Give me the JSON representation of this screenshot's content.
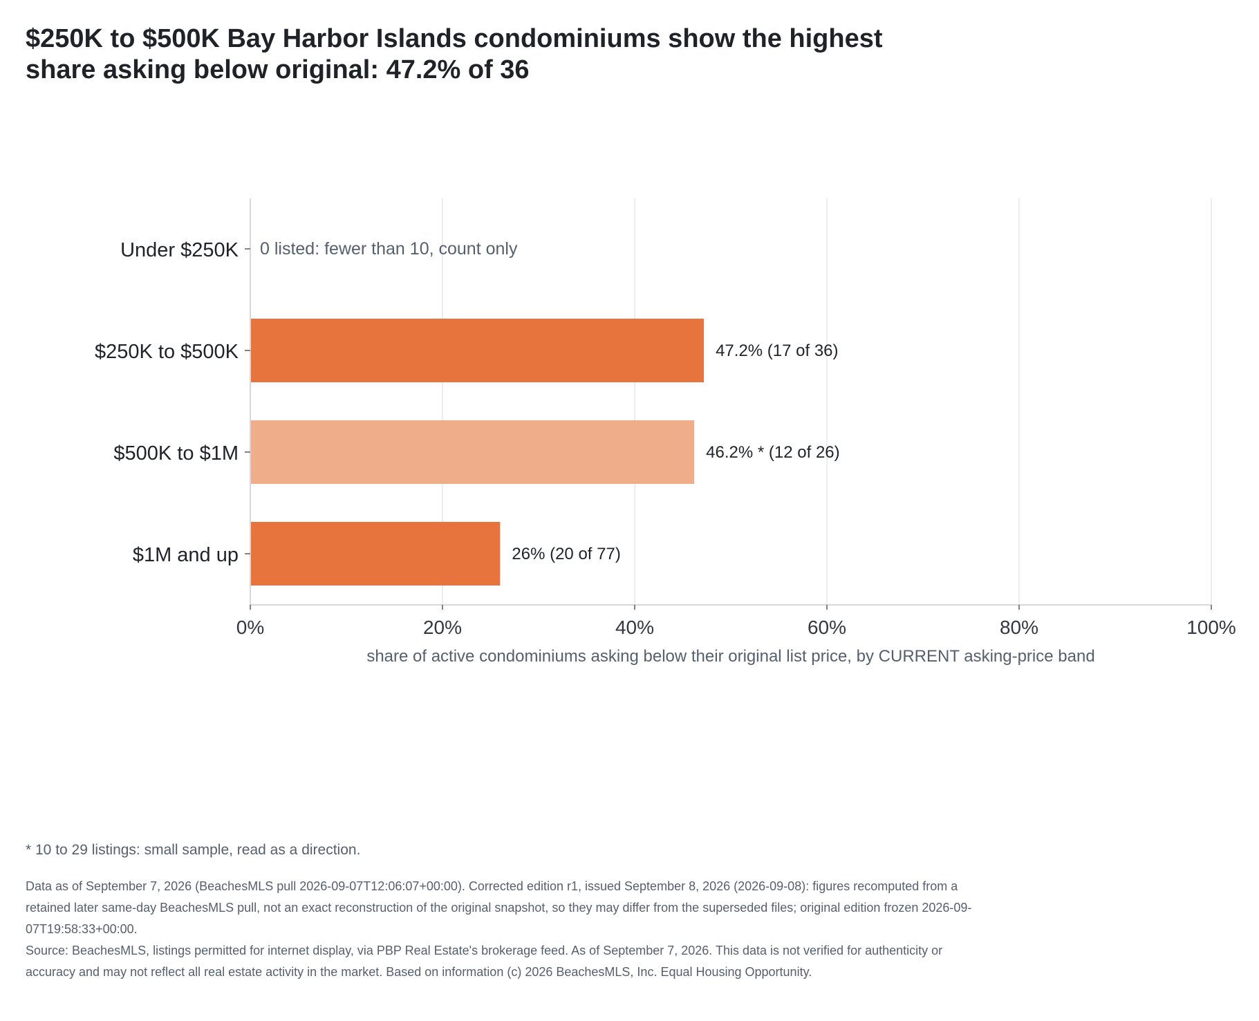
{
  "title": {
    "line1": "$250K to $500K Bay Harbor Islands condominiums show the highest",
    "line2": "share asking below original: 47.2% of 36"
  },
  "chart_data": {
    "type": "bar",
    "orientation": "horizontal",
    "categories": [
      "Under $250K",
      "$250K to $500K",
      "$500K to $1M",
      "$1M and up"
    ],
    "values": [
      null,
      47.2,
      46.2,
      26
    ],
    "counts": [
      "0 listed: fewer than 10, count only",
      "17 of 36",
      "12 of 26",
      "20 of 77"
    ],
    "bar_labels": [
      "0 listed: fewer than 10, count only",
      "47.2%  (17 of 36)",
      "46.2% *  (12 of 26)",
      "26%  (20 of 77)"
    ],
    "small_sample": [
      false,
      false,
      true,
      false
    ],
    "xlabel": "share of active condominiums asking below their original list price, by CURRENT asking-price band",
    "ylabel": "",
    "xlim": [
      0,
      100
    ],
    "xticks": [
      0,
      20,
      40,
      60,
      80,
      100
    ],
    "xtick_labels": [
      "0%",
      "20%",
      "40%",
      "60%",
      "80%",
      "100%"
    ],
    "grid": true,
    "legend": "none",
    "colors": {
      "bar": "#e8743d",
      "bar_small_sample": "#f0ad8a",
      "gridline": "#e3e5ea",
      "axis": "#c9ccd2",
      "note_text": "#55606e"
    }
  },
  "footnote": "* 10 to 29 listings: small sample, read as a direction.",
  "notes": {
    "data_as_of": "Data as of September 7, 2026 (BeachesMLS pull 2026-09-07T12:06:07+00:00). Corrected edition r1, issued September 8, 2026 (2026-09-08): figures recomputed from a retained later same-day BeachesMLS pull, not an exact reconstruction of the original snapshot, so they may differ from the superseded files; original edition frozen 2026-09-07T19:58:33+00:00.",
    "source": "Source: BeachesMLS, listings permitted for internet display, via PBP Real Estate's brokerage feed. As of September 7, 2026. This data is not verified for authenticity or accuracy and may not reflect all real estate activity in the market. Based on information (c) 2026 BeachesMLS, Inc. Equal Housing Opportunity."
  }
}
